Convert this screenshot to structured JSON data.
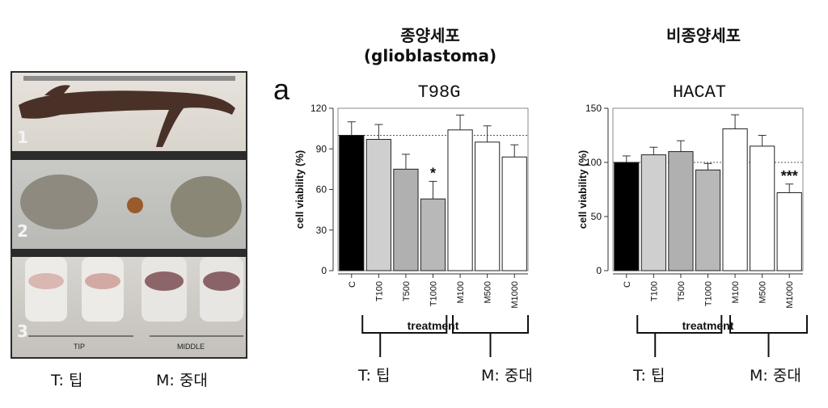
{
  "photo": {
    "strip_numbers": [
      "1",
      "2",
      "3"
    ],
    "tube_labels": {
      "tip": "TIP",
      "middle": "MIDDLE"
    },
    "legend": {
      "t": "T: 팁",
      "m": "M: 중대"
    }
  },
  "headings": {
    "left_line1": "종양세포",
    "left_line2": "(glioblastoma)",
    "right": "비종양세포",
    "panel_letter": "a"
  },
  "chart_data": [
    {
      "type": "bar",
      "title": "T98G",
      "ylabel": "cell viability (%)",
      "xlabel": "treatment",
      "categories": [
        "C",
        "T100",
        "T500",
        "T1000",
        "M100",
        "M500",
        "M1000"
      ],
      "values": [
        100,
        97,
        75,
        53,
        104,
        95,
        84
      ],
      "errors": [
        10,
        11,
        11,
        13,
        11,
        12,
        9
      ],
      "ylim": [
        0,
        120
      ],
      "yticks": [
        0,
        30,
        60,
        90,
        120
      ],
      "reference_line": 100,
      "bar_colors": [
        "#000000",
        "#cfcfcf",
        "#b0b0b0",
        "#b8b8b8",
        "#ffffff",
        "#ffffff",
        "#ffffff"
      ],
      "significance": [
        {
          "category": "T1000",
          "label": "*"
        }
      ],
      "group_legend": {
        "t": "T: 팁",
        "m": "M: 중대"
      }
    },
    {
      "type": "bar",
      "title": "HACAT",
      "ylabel": "cell viability (%)",
      "xlabel": "treatment",
      "categories": [
        "C",
        "T100",
        "T500",
        "T1000",
        "M100",
        "M500",
        "M1000"
      ],
      "values": [
        100,
        107,
        110,
        93,
        131,
        115,
        72
      ],
      "errors": [
        6,
        7,
        10,
        6,
        13,
        10,
        8
      ],
      "ylim": [
        0,
        150
      ],
      "yticks": [
        0,
        50,
        100,
        150
      ],
      "reference_line": 100,
      "bar_colors": [
        "#000000",
        "#cfcfcf",
        "#b0b0b0",
        "#b8b8b8",
        "#ffffff",
        "#ffffff",
        "#ffffff"
      ],
      "significance": [
        {
          "category": "M1000",
          "label": "***"
        }
      ],
      "group_legend": {
        "t": "T: 팁",
        "m": "M: 중대"
      }
    }
  ]
}
